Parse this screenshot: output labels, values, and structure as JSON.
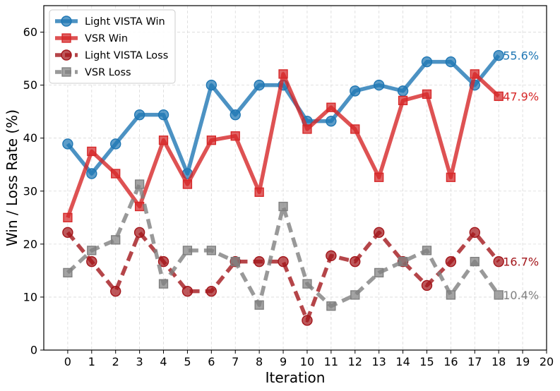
{
  "chart_data": {
    "type": "line",
    "title": "",
    "xlabel": "Iteration",
    "ylabel": "Win / Loss Rate (%)",
    "xlim": [
      -1,
      20
    ],
    "ylim": [
      0,
      65
    ],
    "xticks": [
      0,
      1,
      2,
      3,
      4,
      5,
      6,
      7,
      8,
      9,
      10,
      11,
      12,
      13,
      14,
      15,
      16,
      17,
      18,
      19,
      20
    ],
    "yticks": [
      0,
      10,
      20,
      30,
      40,
      50,
      60
    ],
    "grid": true,
    "legend_position": "top-left",
    "x": [
      0,
      1,
      2,
      3,
      4,
      5,
      6,
      7,
      8,
      9,
      10,
      11,
      12,
      13,
      14,
      15,
      16,
      17,
      18
    ],
    "series": [
      {
        "name": "Light VISTA Win",
        "color": "#1f77b4",
        "marker": "circle",
        "dash": "solid",
        "values": [
          38.9,
          33.3,
          38.9,
          44.4,
          44.4,
          33.3,
          50.0,
          44.4,
          50.0,
          50.0,
          43.2,
          43.2,
          48.9,
          50.0,
          48.9,
          54.4,
          54.4,
          50.0,
          55.6
        ],
        "end_label": "55.6%"
      },
      {
        "name": "VSR Win",
        "color": "#d62728",
        "marker": "square",
        "dash": "solid",
        "values": [
          25.0,
          37.5,
          33.3,
          27.1,
          39.6,
          31.3,
          39.6,
          40.4,
          29.8,
          52.1,
          41.7,
          45.8,
          41.7,
          32.6,
          47.1,
          48.3,
          32.6,
          52.1,
          47.9
        ],
        "end_label": "47.9%"
      },
      {
        "name": "Light VISTA Loss",
        "color": "#a3161b",
        "marker": "circle",
        "dash": "dashed",
        "values": [
          22.2,
          16.7,
          11.1,
          22.2,
          16.7,
          11.1,
          11.1,
          16.7,
          16.7,
          16.7,
          5.6,
          17.8,
          16.7,
          22.2,
          16.7,
          12.2,
          16.7,
          22.2,
          16.7
        ],
        "end_label": "16.7%"
      },
      {
        "name": "VSR Loss",
        "color": "#7f7f7f",
        "marker": "square",
        "dash": "dashed",
        "values": [
          14.6,
          18.8,
          20.8,
          31.3,
          12.5,
          18.8,
          18.8,
          16.7,
          8.5,
          27.1,
          12.5,
          8.3,
          10.4,
          14.6,
          16.7,
          18.8,
          10.4,
          16.7,
          10.4
        ],
        "end_label": "10.4%"
      }
    ]
  }
}
